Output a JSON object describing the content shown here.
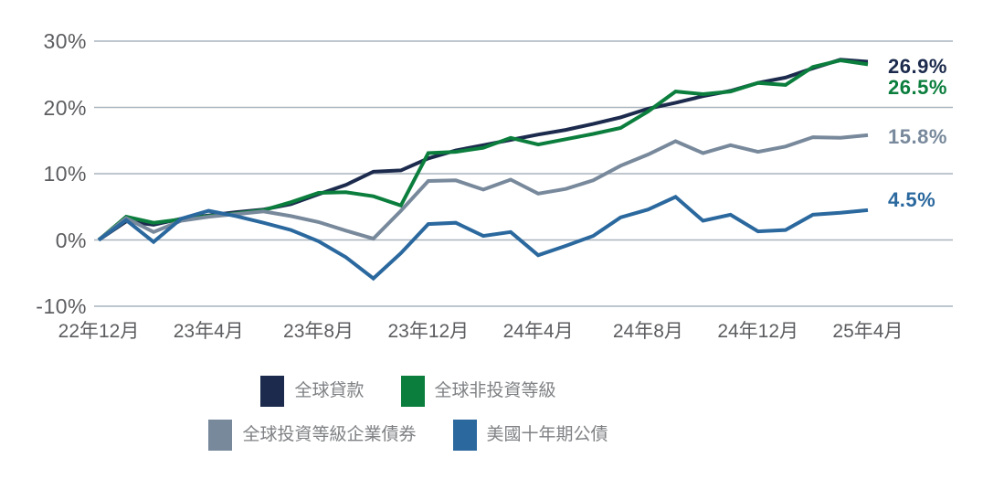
{
  "chart_data": {
    "type": "line",
    "title": "",
    "x_frequency": "monthly",
    "x_range": [
      "2022-12",
      "2025-04"
    ],
    "x_tick_labels": [
      "22年12月",
      "23年4月",
      "23年8月",
      "23年12月",
      "24年4月",
      "24年8月",
      "24年12月",
      "25年4月"
    ],
    "y_tick_labels": [
      "30%",
      "20%",
      "10%",
      "0%",
      "-10%"
    ],
    "y_gridline_values": [
      30,
      20,
      10,
      0,
      -10
    ],
    "ylim": [
      -10,
      30
    ],
    "y_unit": "%",
    "grid": "horizontal",
    "legend_position": "bottom",
    "colors": {
      "gridline": "#a9b4bd",
      "axis_text": "#5c5d60",
      "legend_text": "#7f8184"
    },
    "series": [
      {
        "name": "全球貸款",
        "color": "#1c2b4d",
        "end_label": "26.9%",
        "values": [
          0,
          2.8,
          2.3,
          3.2,
          3.7,
          4.2,
          4.6,
          5.4,
          6.9,
          8.3,
          10.3,
          10.5,
          12.3,
          13.5,
          14.3,
          15.1,
          15.9,
          16.6,
          17.5,
          18.5,
          19.8,
          20.7,
          21.7,
          22.5,
          23.7,
          24.5,
          25.9,
          27.2,
          26.9
        ]
      },
      {
        "name": "全球非投資等級",
        "color": "#0b7e3d",
        "end_label": "26.5%",
        "values": [
          0,
          3.5,
          2.6,
          3.1,
          3.6,
          4.0,
          4.5,
          5.7,
          7.1,
          7.2,
          6.6,
          5.2,
          13.1,
          13.3,
          13.9,
          15.4,
          14.4,
          15.2,
          16.0,
          16.9,
          19.4,
          22.4,
          22.0,
          22.4,
          23.7,
          23.4,
          26.1,
          27.1,
          26.5
        ]
      },
      {
        "name": "全球投資等級企業債券",
        "color": "#78899c",
        "end_label": "15.8%",
        "values": [
          0,
          3.3,
          1.2,
          2.9,
          3.5,
          3.9,
          4.3,
          3.6,
          2.7,
          1.4,
          0.2,
          4.4,
          8.9,
          9.0,
          7.6,
          9.1,
          7.0,
          7.7,
          9.0,
          11.2,
          12.9,
          14.9,
          13.1,
          14.3,
          13.3,
          14.1,
          15.5,
          15.4,
          15.8
        ]
      },
      {
        "name": "美國十年期公債",
        "color": "#2a689e",
        "end_label": "4.5%",
        "values": [
          0,
          3.0,
          -0.3,
          3.2,
          4.4,
          3.6,
          2.6,
          1.5,
          -0.2,
          -2.6,
          -5.8,
          -2.0,
          2.4,
          2.6,
          0.6,
          1.2,
          -2.3,
          -0.9,
          0.6,
          3.4,
          4.6,
          6.5,
          2.9,
          3.8,
          1.3,
          1.5,
          3.8,
          4.1,
          4.5
        ]
      }
    ]
  }
}
